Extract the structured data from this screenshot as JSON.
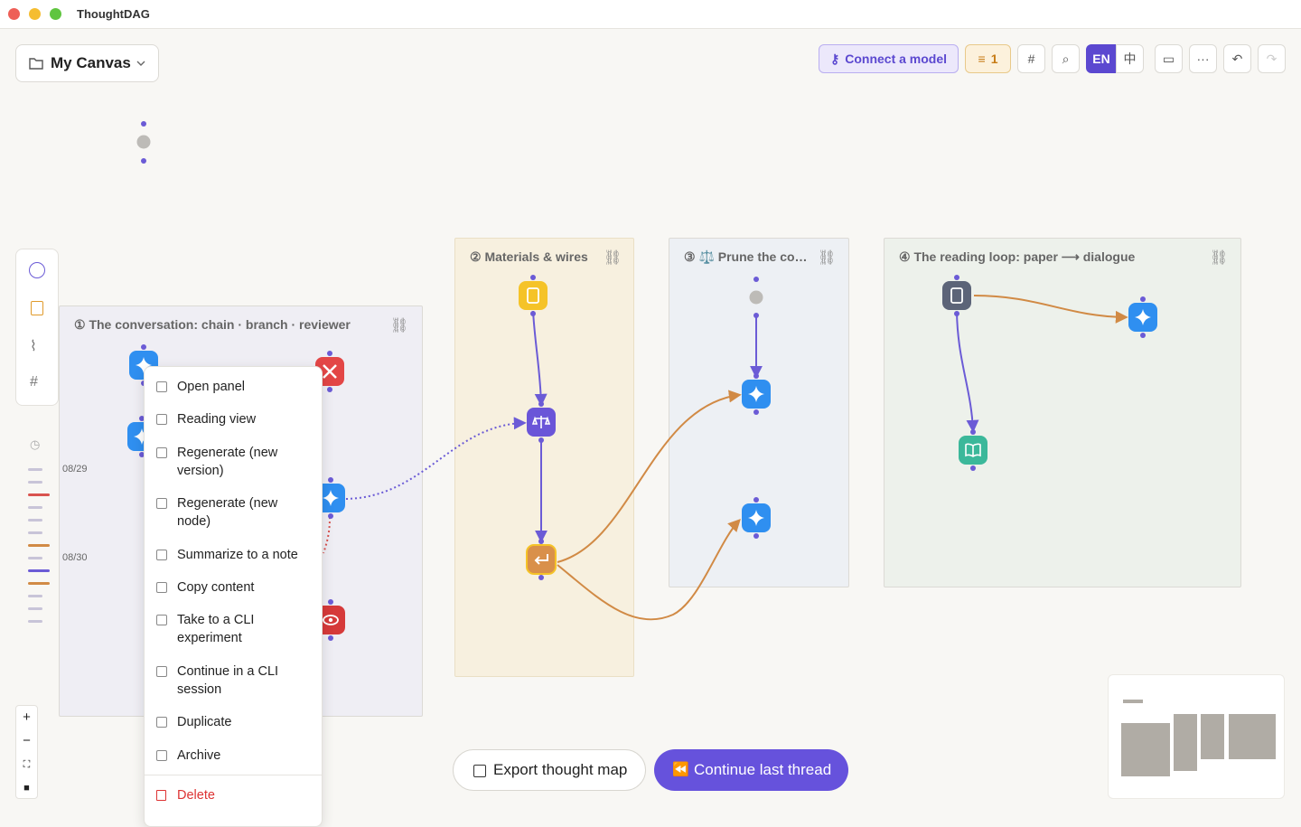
{
  "window": {
    "title": "ThoughtDAG"
  },
  "toolbar": {
    "canvas_name": "My Canvas",
    "connect_model": "Connect a model",
    "badge_count": 1,
    "lang_en": "EN",
    "lang_zh": "中"
  },
  "groups": [
    {
      "title": "① The conversation: chain · branch · reviewer"
    },
    {
      "title": "② Materials & wires"
    },
    {
      "title": "③ ⚖️ Prune the co…"
    },
    {
      "title": "④ The reading loop: paper ⟶ dialogue"
    }
  ],
  "timeline": {
    "dates": [
      "08/29",
      "08/30"
    ]
  },
  "context_menu": {
    "items": [
      "Open panel",
      "Reading view",
      "Regenerate (new version)",
      "Regenerate (new node)",
      "Summarize to a note",
      "Copy content",
      "Take to a CLI experiment",
      "Continue in a CLI session",
      "Duplicate",
      "Archive"
    ],
    "delete": "Delete"
  },
  "actions": {
    "export": "Export thought map",
    "continue": "Continue last thread"
  }
}
